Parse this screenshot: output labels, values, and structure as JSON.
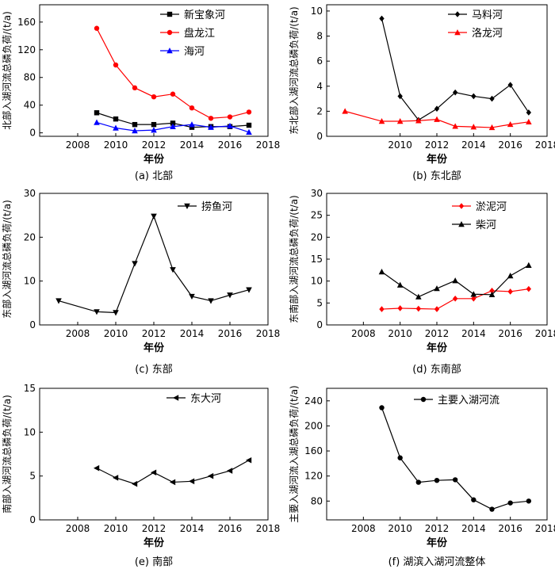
{
  "chart_data": [
    {
      "id": "a",
      "type": "line",
      "caption": "(a) 北部",
      "xlabel": "年份",
      "ylabel": "北部入湖河流总磷负荷/(t/a)",
      "xlim": [
        2006,
        2018
      ],
      "ylim": [
        -5,
        185
      ],
      "xticks": [
        2008,
        2010,
        2012,
        2014,
        2016,
        2018
      ],
      "yticks": [
        0,
        40,
        80,
        120,
        160
      ],
      "legend": "top-right",
      "series": [
        {
          "name": "新宝象河",
          "color": "#000000",
          "marker": "square",
          "x": [
            2009,
            2010,
            2011,
            2012,
            2013,
            2014,
            2015,
            2016,
            2017
          ],
          "y": [
            29,
            20,
            12,
            12,
            14,
            8,
            9,
            9,
            11
          ]
        },
        {
          "name": "盘龙江",
          "color": "#ff0000",
          "marker": "circle",
          "x": [
            2009,
            2010,
            2011,
            2012,
            2013,
            2014,
            2015,
            2016,
            2017
          ],
          "y": [
            151,
            98,
            65,
            52,
            56,
            36,
            21,
            23,
            30
          ]
        },
        {
          "name": "海河",
          "color": "#0000ff",
          "marker": "triangle",
          "x": [
            2009,
            2010,
            2011,
            2012,
            2013,
            2014,
            2015,
            2016,
            2017
          ],
          "y": [
            15,
            7,
            3,
            4,
            9,
            12,
            8,
            10,
            1
          ]
        }
      ]
    },
    {
      "id": "b",
      "type": "line",
      "caption": "(b) 东北部",
      "xlabel": "年份",
      "ylabel": "东北部入湖河流总磷负荷/(t/a)",
      "xlim": [
        2006,
        2018
      ],
      "ylim": [
        0,
        10.5
      ],
      "xticks": [
        2010,
        2012,
        2014,
        2016,
        2018
      ],
      "yticks": [
        0,
        2,
        4,
        6,
        8,
        10
      ],
      "legend": "top-right",
      "series": [
        {
          "name": "马料河",
          "color": "#000000",
          "marker": "diamond",
          "x": [
            2009,
            2010,
            2011,
            2012,
            2013,
            2014,
            2015,
            2016,
            2017
          ],
          "y": [
            9.4,
            3.2,
            1.3,
            2.2,
            3.5,
            3.2,
            3.0,
            4.1,
            1.9
          ]
        },
        {
          "name": "洛龙河",
          "color": "#ff0000",
          "marker": "triangle",
          "x": [
            2007,
            2009,
            2010,
            2011,
            2012,
            2013,
            2014,
            2015,
            2016,
            2017
          ],
          "y": [
            2.0,
            1.2,
            1.2,
            1.25,
            1.35,
            0.8,
            0.75,
            0.7,
            0.95,
            1.15
          ]
        }
      ]
    },
    {
      "id": "c",
      "type": "line",
      "caption": "(c) 东部",
      "xlabel": "年份",
      "ylabel": "东部入湖河流总磷负荷/(t/a)",
      "xlim": [
        2006,
        2018
      ],
      "ylim": [
        0,
        30
      ],
      "xticks": [
        2008,
        2010,
        2012,
        2014,
        2016,
        2018
      ],
      "yticks": [
        0,
        10,
        20,
        30
      ],
      "legend": "top-right",
      "series": [
        {
          "name": "捞鱼河",
          "color": "#000000",
          "marker": "triangle-down",
          "x": [
            2007,
            2009,
            2010,
            2011,
            2012,
            2013,
            2014,
            2015,
            2016,
            2017
          ],
          "y": [
            5.5,
            3.0,
            2.8,
            14.0,
            24.8,
            12.6,
            6.5,
            5.5,
            6.8,
            8.0
          ]
        }
      ]
    },
    {
      "id": "d",
      "type": "line",
      "caption": "(d) 东南部",
      "xlabel": "年份",
      "ylabel": "东南部入湖河流总磷负荷/(t/a)",
      "xlim": [
        2006,
        2018
      ],
      "ylim": [
        0,
        30
      ],
      "xticks": [
        2008,
        2010,
        2012,
        2014,
        2016,
        2018
      ],
      "yticks": [
        0,
        5,
        10,
        15,
        20,
        25,
        30
      ],
      "legend": "top-right",
      "series": [
        {
          "name": "淤泥河",
          "color": "#ff0000",
          "marker": "diamond",
          "x": [
            2009,
            2010,
            2011,
            2012,
            2013,
            2014,
            2015,
            2016,
            2017
          ],
          "y": [
            3.6,
            3.8,
            3.7,
            3.6,
            6.0,
            6.0,
            7.8,
            7.6,
            8.2
          ]
        },
        {
          "name": "柴河",
          "color": "#000000",
          "marker": "triangle",
          "x": [
            2009,
            2010,
            2011,
            2012,
            2013,
            2014,
            2015,
            2016,
            2017
          ],
          "y": [
            12.1,
            9.1,
            6.4,
            8.3,
            10.1,
            7.0,
            6.9,
            11.2,
            13.6
          ]
        }
      ]
    },
    {
      "id": "e",
      "type": "line",
      "caption": "(e) 南部",
      "xlabel": "年份",
      "ylabel": "南部入湖河流总磷负荷/(t/a)",
      "xlim": [
        2006,
        2018
      ],
      "ylim": [
        0,
        15
      ],
      "xticks": [
        2008,
        2010,
        2012,
        2014,
        2016,
        2018
      ],
      "yticks": [
        0,
        5,
        10,
        15
      ],
      "legend": "top-right",
      "series": [
        {
          "name": "东大河",
          "color": "#000000",
          "marker": "triangle-left",
          "x": [
            2009,
            2010,
            2011,
            2012,
            2013,
            2014,
            2015,
            2016,
            2017
          ],
          "y": [
            5.9,
            4.8,
            4.1,
            5.4,
            4.3,
            4.4,
            5.0,
            5.6,
            6.8
          ]
        }
      ]
    },
    {
      "id": "f",
      "type": "line",
      "caption": "(f) 湖滨入湖河流整体",
      "xlabel": "年份",
      "ylabel": "主要入湖河流入湖总磷负荷/(t/a)",
      "xlim": [
        2006,
        2018
      ],
      "ylim": [
        50,
        260
      ],
      "xticks": [
        2008,
        2010,
        2012,
        2014,
        2016,
        2018
      ],
      "yticks": [
        80,
        120,
        160,
        200,
        240
      ],
      "legend": "top-right",
      "series": [
        {
          "name": "主要入湖河流",
          "color": "#000000",
          "marker": "circle",
          "x": [
            2009,
            2010,
            2011,
            2012,
            2013,
            2014,
            2015,
            2016,
            2017
          ],
          "y": [
            229,
            149,
            110,
            113,
            114,
            82,
            67,
            77,
            80
          ]
        }
      ]
    }
  ]
}
